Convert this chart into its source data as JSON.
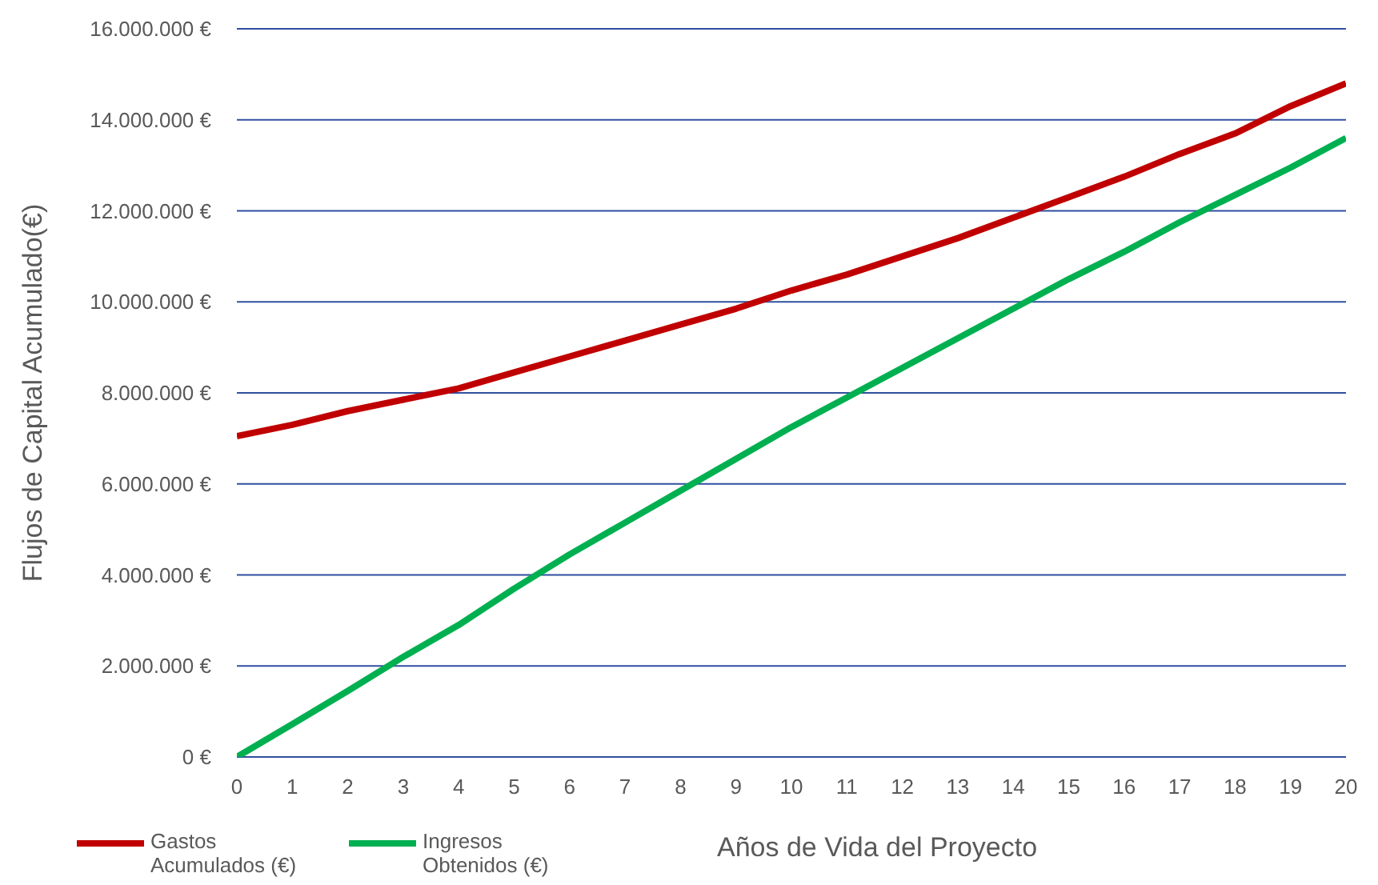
{
  "chart_data": {
    "type": "line",
    "xlabel": "Años de Vida del Proyecto",
    "ylabel": "Flujos de Capital Acumulado(€)",
    "x": [
      0,
      1,
      2,
      3,
      4,
      5,
      6,
      7,
      8,
      9,
      10,
      11,
      12,
      13,
      14,
      15,
      16,
      17,
      18,
      19,
      20
    ],
    "xlim": [
      0,
      20
    ],
    "xticks": [
      0,
      1,
      2,
      3,
      4,
      5,
      6,
      7,
      8,
      9,
      10,
      11,
      12,
      13,
      14,
      15,
      16,
      17,
      18,
      19,
      20
    ],
    "ylim": [
      0,
      16000000
    ],
    "yticks": [
      {
        "value": 0,
        "label": "0 €"
      },
      {
        "value": 2000000,
        "label": "2.000.000 €"
      },
      {
        "value": 4000000,
        "label": "4.000.000 €"
      },
      {
        "value": 6000000,
        "label": "6.000.000 €"
      },
      {
        "value": 8000000,
        "label": "8.000.000 €"
      },
      {
        "value": 10000000,
        "label": "10.000.000 €"
      },
      {
        "value": 12000000,
        "label": "12.000.000 €"
      },
      {
        "value": 14000000,
        "label": "14.000.000 €"
      },
      {
        "value": 16000000,
        "label": "16.000.000 €"
      }
    ],
    "grid": "y",
    "legend": "bottom left",
    "marker": "none",
    "line_style": "solid",
    "series": [
      {
        "name": "Gastos Acumulados (€)",
        "color": "#c00000",
        "values": [
          7050000,
          7300000,
          7600000,
          7850000,
          8100000,
          8450000,
          8800000,
          9150000,
          9500000,
          9850000,
          10250000,
          10600000,
          11000000,
          11400000,
          11850000,
          12300000,
          12750000,
          13250000,
          13700000,
          14300000,
          14800000
        ]
      },
      {
        "name": "Ingresos Obtenidos (€)",
        "color": "#00b050",
        "values": [
          0,
          720000,
          1450000,
          2200000,
          2900000,
          3700000,
          4450000,
          5150000,
          5850000,
          6550000,
          7250000,
          7900000,
          8550000,
          9200000,
          9850000,
          10500000,
          11100000,
          11750000,
          12350000,
          12950000,
          13600000
        ]
      }
    ]
  }
}
